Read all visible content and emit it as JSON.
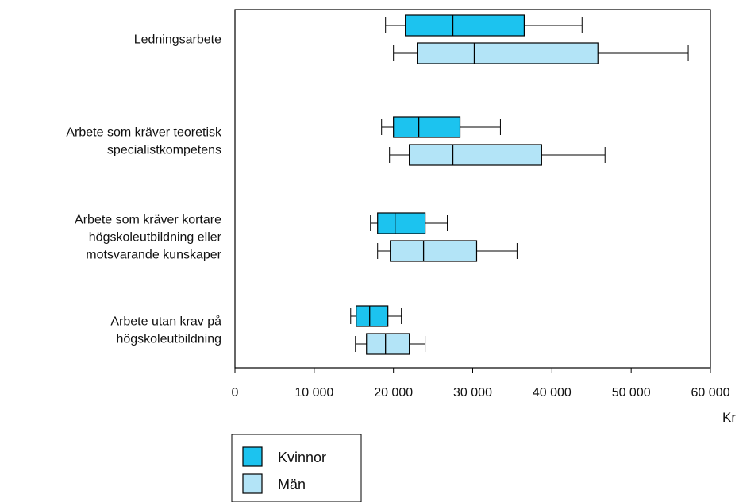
{
  "chart_data": {
    "type": "boxplot",
    "orientation": "horizontal",
    "x_unit": "Kr",
    "xlim": [
      0,
      60000
    ],
    "x_ticks": [
      0,
      10000,
      20000,
      30000,
      40000,
      50000,
      60000
    ],
    "x_tick_labels": [
      "0",
      "10 000",
      "20 000",
      "30 000",
      "40 000",
      "50 000",
      "60 000"
    ],
    "grid": false,
    "legend_position": "bottom-left",
    "series": [
      {
        "name": "Kvinnor",
        "color": "#1cc3ef"
      },
      {
        "name": "Män",
        "color": "#b3e4f7"
      }
    ],
    "categories": [
      {
        "label_lines": [
          "Ledningsarbete"
        ],
        "boxes": [
          {
            "series": "Kvinnor",
            "min": 19000,
            "q1": 21500,
            "median": 27500,
            "q3": 36500,
            "max": 43800
          },
          {
            "series": "Män",
            "min": 20000,
            "q1": 23000,
            "median": 30200,
            "q3": 45800,
            "max": 57200
          }
        ]
      },
      {
        "label_lines": [
          "Arbete som kräver teoretisk",
          "specialistkompetens"
        ],
        "boxes": [
          {
            "series": "Kvinnor",
            "min": 18500,
            "q1": 20000,
            "median": 23200,
            "q3": 28400,
            "max": 33500
          },
          {
            "series": "Män",
            "min": 19500,
            "q1": 22000,
            "median": 27500,
            "q3": 38700,
            "max": 46700
          }
        ]
      },
      {
        "label_lines": [
          "Arbete som kräver kortare",
          "högskoleutbildning eller",
          "motsvarande kunskaper"
        ],
        "boxes": [
          {
            "series": "Kvinnor",
            "min": 17100,
            "q1": 18000,
            "median": 20200,
            "q3": 24000,
            "max": 26800
          },
          {
            "series": "Män",
            "min": 18000,
            "q1": 19600,
            "median": 23800,
            "q3": 30500,
            "max": 35600
          }
        ]
      },
      {
        "label_lines": [
          "Arbete utan krav på",
          "högskoleutbildning"
        ],
        "boxes": [
          {
            "series": "Kvinnor",
            "min": 14600,
            "q1": 15300,
            "median": 17000,
            "q3": 19300,
            "max": 21000
          },
          {
            "series": "Män",
            "min": 15200,
            "q1": 16600,
            "median": 19000,
            "q3": 22000,
            "max": 24000
          }
        ]
      }
    ]
  }
}
